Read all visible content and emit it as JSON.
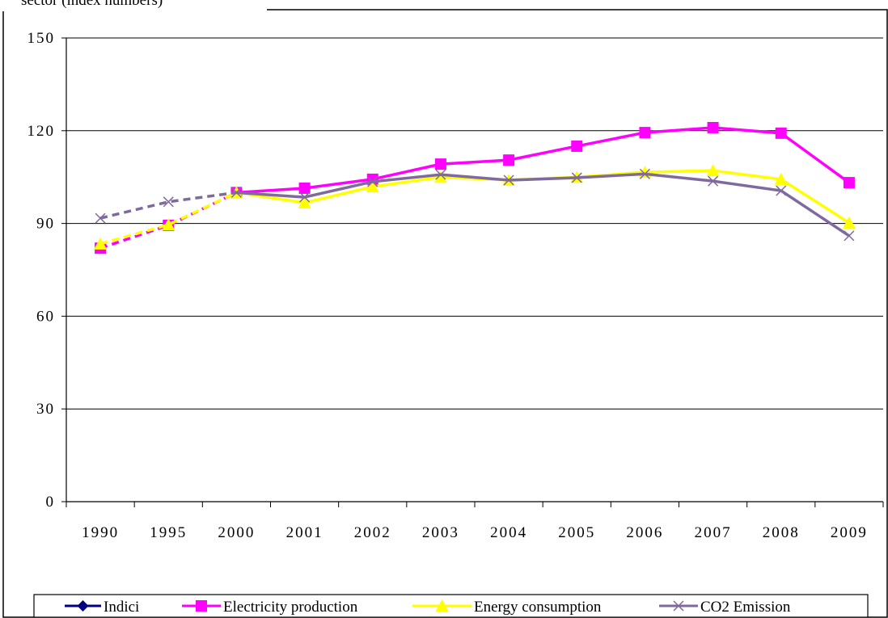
{
  "chart_data": {
    "type": "line",
    "title": "sector (index numbers)",
    "categories": [
      "1990",
      "1995",
      "2000",
      "2001",
      "2002",
      "2003",
      "2004",
      "2005",
      "2006",
      "2007",
      "2008",
      "2009"
    ],
    "series": [
      {
        "name": "Indici",
        "color": "#000080",
        "marker": "diamond",
        "values": [
          null,
          null,
          null,
          null,
          null,
          null,
          null,
          null,
          null,
          null,
          null,
          null
        ]
      },
      {
        "name": "Electricity production",
        "color": "#ff00ff",
        "marker": "square",
        "values": [
          82,
          89.4,
          100,
          101.4,
          104.3,
          109.2,
          110.5,
          115,
          119.4,
          121,
          119.2,
          103.2
        ]
      },
      {
        "name": "Energy consumption",
        "color": "#ffff00",
        "marker": "triangle",
        "values": [
          83.4,
          89.6,
          100,
          96.7,
          101.9,
          105,
          104,
          105,
          106.6,
          107.1,
          104.3,
          90.2
        ]
      },
      {
        "name": "CO2 Emission",
        "color": "#7f6a9e",
        "marker": "x",
        "values": [
          91.7,
          97,
          100,
          98.5,
          103.5,
          105.8,
          104,
          104.8,
          106,
          103.7,
          100.6,
          86
        ]
      }
    ],
    "dash_first_segments": 2,
    "ylim": [
      0,
      150
    ],
    "yticks": [
      0,
      30,
      60,
      90,
      120,
      150
    ],
    "grid": true,
    "legend": "bottom"
  }
}
